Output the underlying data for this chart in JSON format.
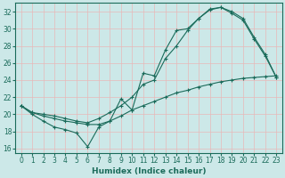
{
  "xlabel": "Humidex (Indice chaleur)",
  "bg_color": "#cce8e8",
  "grid_color": "#e8b8b8",
  "line_color": "#1a6b5a",
  "xlim": [
    -0.5,
    23.5
  ],
  "ylim": [
    15.5,
    33.0
  ],
  "xticks": [
    0,
    1,
    2,
    3,
    4,
    5,
    6,
    7,
    8,
    9,
    10,
    11,
    12,
    13,
    14,
    15,
    16,
    17,
    18,
    19,
    20,
    21,
    22,
    23
  ],
  "yticks": [
    16,
    18,
    20,
    22,
    24,
    26,
    28,
    30,
    32
  ],
  "line_straight": {
    "x": [
      0,
      1,
      2,
      3,
      4,
      5,
      6,
      7,
      8,
      9,
      10,
      11,
      12,
      13,
      14,
      15,
      16,
      17,
      18,
      19,
      20,
      21,
      22,
      23
    ],
    "y": [
      21.0,
      20.2,
      19.8,
      19.5,
      19.2,
      19.0,
      18.8,
      18.8,
      19.2,
      19.8,
      20.5,
      21.0,
      21.5,
      22.0,
      22.5,
      22.8,
      23.2,
      23.5,
      23.8,
      24.0,
      24.2,
      24.3,
      24.4,
      24.5
    ]
  },
  "line_jagged": {
    "x": [
      0,
      1,
      2,
      3,
      4,
      5,
      6,
      7,
      8,
      9,
      10,
      11,
      12,
      13,
      14,
      15,
      16,
      17,
      18,
      19,
      20,
      21,
      22,
      23
    ],
    "y": [
      21.0,
      20.0,
      19.2,
      18.5,
      18.2,
      17.8,
      16.2,
      18.5,
      19.2,
      21.8,
      20.5,
      24.8,
      24.5,
      27.5,
      29.8,
      30.0,
      31.2,
      32.3,
      32.5,
      32.0,
      31.2,
      29.0,
      27.0,
      24.3
    ]
  },
  "line_smooth": {
    "x": [
      0,
      1,
      2,
      3,
      4,
      5,
      6,
      7,
      8,
      9,
      10,
      11,
      12,
      13,
      14,
      15,
      16,
      17,
      18,
      19,
      20,
      21,
      22,
      23
    ],
    "y": [
      21.0,
      20.2,
      20.0,
      19.8,
      19.5,
      19.2,
      19.0,
      19.5,
      20.2,
      21.0,
      22.0,
      23.5,
      24.0,
      26.5,
      28.0,
      29.8,
      31.2,
      32.2,
      32.5,
      31.8,
      31.0,
      28.8,
      26.8,
      24.3
    ]
  }
}
